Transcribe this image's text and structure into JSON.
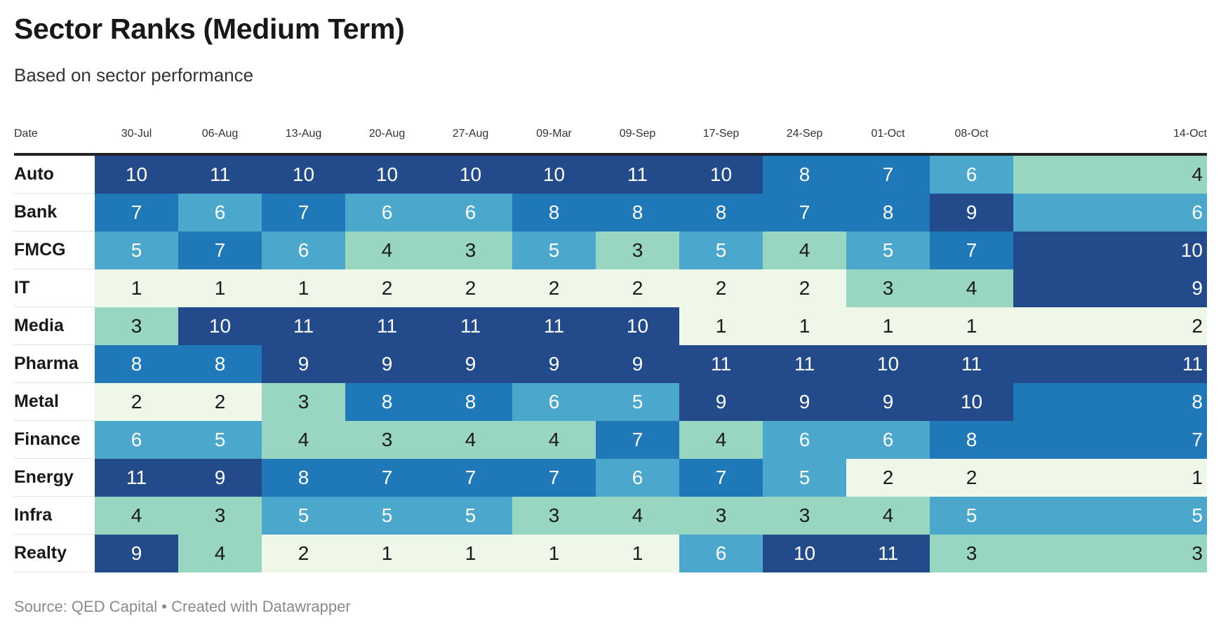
{
  "title": "Sector Ranks (Medium Term)",
  "subtitle": "Based on sector performance",
  "footer": "Source: QED Capital • Created with Datawrapper",
  "chart_data": {
    "type": "table",
    "title": "Sector Ranks (Medium Term)",
    "subtitle": "Based on sector performance",
    "row_header": "Date",
    "columns": [
      "30-Jul",
      "06-Aug",
      "13-Aug",
      "20-Aug",
      "27-Aug",
      "09-Mar",
      "09-Sep",
      "17-Sep",
      "24-Sep",
      "01-Oct",
      "08-Oct",
      "14-Oct"
    ],
    "rows": [
      {
        "name": "Auto",
        "values": [
          10,
          11,
          10,
          10,
          10,
          10,
          11,
          10,
          8,
          7,
          6,
          4
        ]
      },
      {
        "name": "Bank",
        "values": [
          7,
          6,
          7,
          6,
          6,
          8,
          8,
          8,
          7,
          8,
          9,
          6
        ]
      },
      {
        "name": "FMCG",
        "values": [
          5,
          7,
          6,
          4,
          3,
          5,
          3,
          5,
          4,
          5,
          7,
          10
        ]
      },
      {
        "name": "IT",
        "values": [
          1,
          1,
          1,
          2,
          2,
          2,
          2,
          2,
          2,
          3,
          4,
          9
        ]
      },
      {
        "name": "Media",
        "values": [
          3,
          10,
          11,
          11,
          11,
          11,
          10,
          1,
          1,
          1,
          1,
          2
        ]
      },
      {
        "name": "Pharma",
        "values": [
          8,
          8,
          9,
          9,
          9,
          9,
          9,
          11,
          11,
          10,
          11,
          11
        ]
      },
      {
        "name": "Metal",
        "values": [
          2,
          2,
          3,
          8,
          8,
          6,
          5,
          9,
          9,
          9,
          10,
          8
        ]
      },
      {
        "name": "Finance",
        "values": [
          6,
          5,
          4,
          3,
          4,
          4,
          7,
          4,
          6,
          6,
          8,
          7
        ]
      },
      {
        "name": "Energy",
        "values": [
          11,
          9,
          8,
          7,
          7,
          7,
          6,
          7,
          5,
          2,
          2,
          1
        ]
      },
      {
        "name": "Infra",
        "values": [
          4,
          3,
          5,
          5,
          5,
          3,
          4,
          3,
          3,
          4,
          5,
          5
        ]
      },
      {
        "name": "Realty",
        "values": [
          9,
          4,
          2,
          1,
          1,
          1,
          1,
          6,
          10,
          11,
          3,
          3
        ]
      }
    ],
    "color_scale": {
      "1": "#eff7e8",
      "2": "#eff7e8",
      "3": "#98d6c1",
      "4": "#98d6c1",
      "5": "#4ba8cc",
      "6": "#4ba8cc",
      "7": "#1f78b7",
      "8": "#1f78b7",
      "9": "#234b8c",
      "10": "#234b8c",
      "11": "#234b8c"
    },
    "text_colors": {
      "light": "#ffffff",
      "dark": "#1a1a1a"
    }
  }
}
